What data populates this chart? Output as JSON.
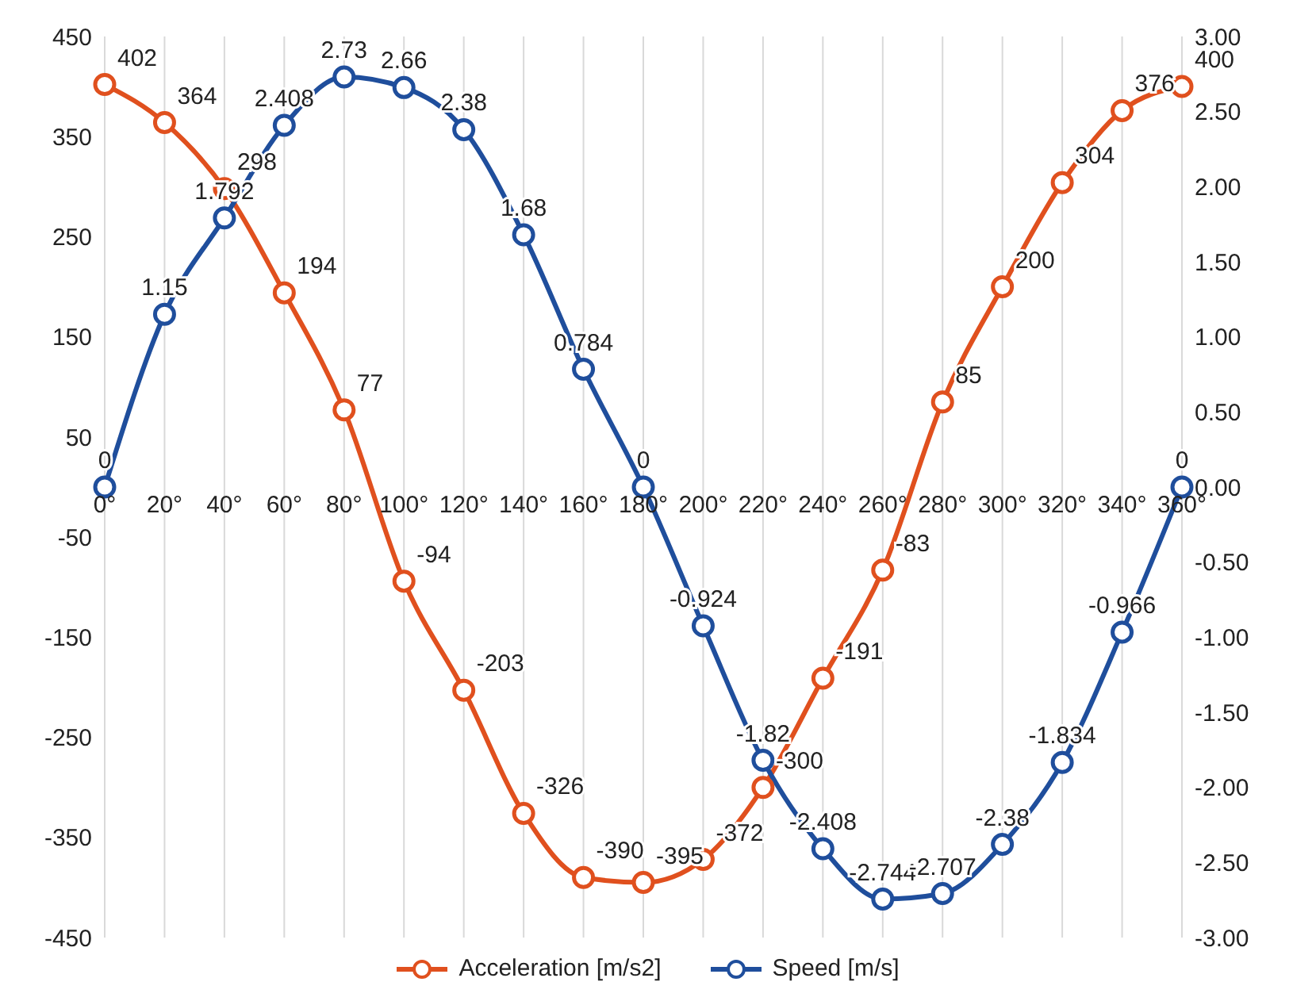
{
  "chart_data": {
    "type": "line",
    "categories": [
      "0°",
      "20°",
      "40°",
      "60°",
      "80°",
      "100°",
      "120°",
      "140°",
      "160°",
      "180°",
      "200°",
      "220°",
      "240°",
      "260°",
      "280°",
      "300°",
      "320°",
      "340°",
      "360°"
    ],
    "series": [
      {
        "name": "Acceleration [m/s2]",
        "color": "#e0501e",
        "values": [
          402,
          364,
          298,
          194,
          77,
          -94,
          -203,
          -326,
          -390,
          -395,
          -372,
          -300,
          -191,
          -83,
          85,
          200,
          304,
          376,
          400
        ]
      },
      {
        "name": "Speed [m/s]",
        "color": "#1f4e9c",
        "axis": "y2",
        "values": [
          0,
          1.15,
          1.792,
          2.408,
          2.73,
          2.66,
          2.38,
          1.68,
          0.784,
          0,
          -0.924,
          -1.82,
          -2.408,
          -2.744,
          -2.707,
          -2.38,
          -1.834,
          -0.966,
          0
        ]
      }
    ],
    "ylim": [
      -450,
      450
    ],
    "yticks": [
      -450,
      -350,
      -250,
      -150,
      -50,
      50,
      150,
      250,
      350,
      450
    ],
    "y2lim": [
      -3,
      3
    ],
    "y2ticks": [
      {
        "value": -3,
        "label": "-3.00"
      },
      {
        "value": -2.5,
        "label": "-2.50"
      },
      {
        "value": -2,
        "label": "-2.00"
      },
      {
        "value": -1.5,
        "label": "-1.50"
      },
      {
        "value": -1,
        "label": "-1.00"
      },
      {
        "value": -0.5,
        "label": "-0.50"
      },
      {
        "value": 0,
        "label": "0.00"
      },
      {
        "value": 0.5,
        "label": "0.50"
      },
      {
        "value": 1,
        "label": "1.00"
      },
      {
        "value": 1.5,
        "label": "1.50"
      },
      {
        "value": 2,
        "label": "2.00"
      },
      {
        "value": 2.5,
        "label": "2.50"
      },
      {
        "value": 3,
        "label": "3.00"
      }
    ],
    "grid": true,
    "legend": "bottom",
    "marker": "circle",
    "line_style": "solid",
    "data_labels": true
  }
}
